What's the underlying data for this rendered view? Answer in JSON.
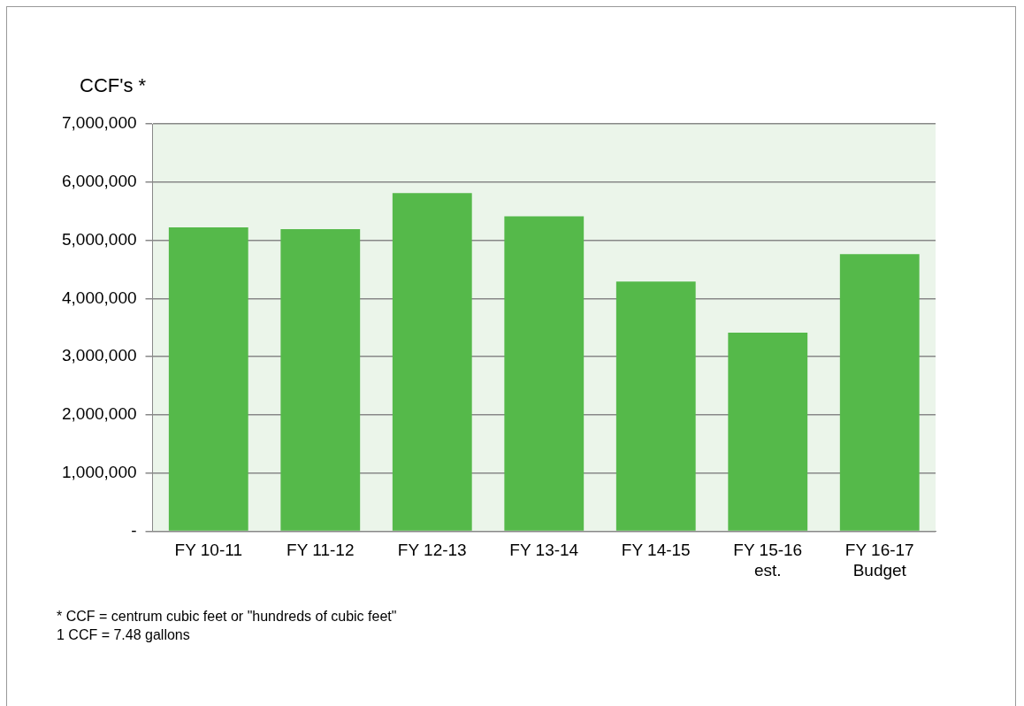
{
  "chart_data": {
    "type": "bar",
    "ylabel": "CCF's *",
    "categories": [
      "FY 10-11",
      "FY 11-12",
      "FY 12-13",
      "FY 13-14",
      "FY 14-15",
      "FY 15-16\nest.",
      "FY 16-17\nBudget"
    ],
    "values": [
      5220000,
      5190000,
      5810000,
      5410000,
      4290000,
      3410000,
      4760000
    ],
    "color": "#55b94a",
    "ylim": [
      0,
      7000000
    ],
    "yticks": [
      {
        "value": 0,
        "label": "-"
      },
      {
        "value": 1000000,
        "label": "1,000,000"
      },
      {
        "value": 2000000,
        "label": "2,000,000"
      },
      {
        "value": 3000000,
        "label": "3,000,000"
      },
      {
        "value": 4000000,
        "label": "4,000,000"
      },
      {
        "value": 5000000,
        "label": "5,000,000"
      },
      {
        "value": 6000000,
        "label": "6,000,000"
      },
      {
        "value": 7000000,
        "label": "7,000,000"
      }
    ],
    "grid": "y",
    "annotations": [
      "* CCF = centrum cubic feet or \"hundreds of cubic feet\"",
      "1 CCF = 7.48 gallons"
    ]
  }
}
